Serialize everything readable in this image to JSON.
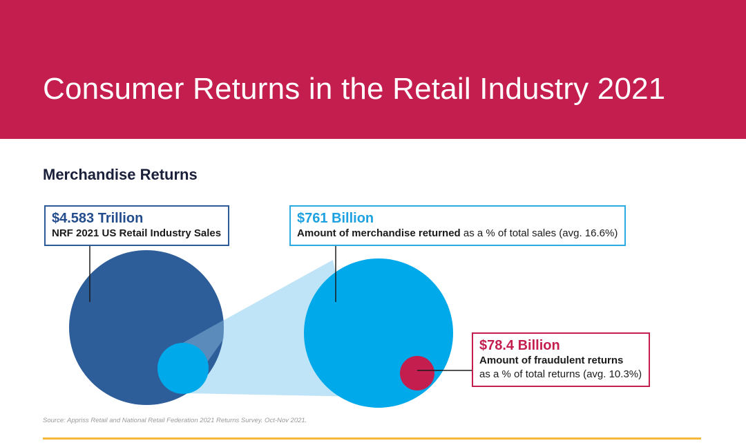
{
  "header": {
    "title": "Consumer Returns in the Retail Industry 2021"
  },
  "section": {
    "title": "Merchandise Returns"
  },
  "colors": {
    "banner": "#c41e4f",
    "sales_circle": "#2e5e9a",
    "returns_circle": "#00a9ea",
    "fraud_circle": "#c41e4f",
    "funnel": "#bfe4f7",
    "footer_rule": "#f6b83b"
  },
  "chart_data": {
    "type": "proportional-circles",
    "units": "USD",
    "items": [
      {
        "key": "sales",
        "value_label": "$4.583 Trillion",
        "value": 4583,
        "value_units": "billion USD",
        "description": "NRF 2021 US Retail Industry Sales"
      },
      {
        "key": "returned",
        "value_label": "$761 Billion",
        "value": 761,
        "value_units": "billion USD",
        "description_bold": "Amount of merchandise returned",
        "description_rest": " as a % of total sales (avg. 16.6%)",
        "percent_of_parent": 16.6
      },
      {
        "key": "fraud",
        "value_label": "$78.4 Billion",
        "value": 78.4,
        "value_units": "billion USD",
        "description_bold": "Amount of fraudulent returns",
        "description_rest": "as a % of total returns (avg. 10.3%)",
        "percent_of_parent": 10.3
      }
    ]
  },
  "footer": {
    "source": "Source: Appriss Retail and National Retail Federation 2021 Returns Survey. Oct-Nov 2021."
  }
}
